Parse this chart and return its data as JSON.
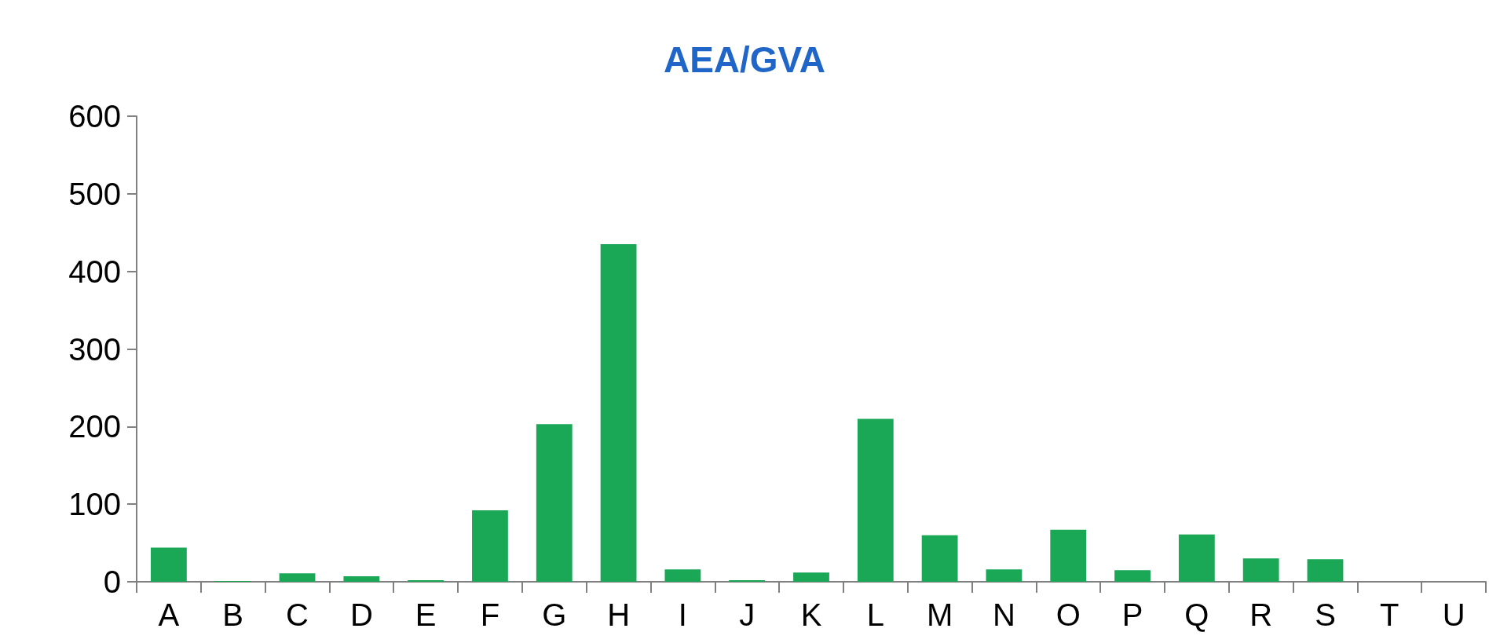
{
  "chart_data": {
    "type": "bar",
    "title": "AEA/GVA",
    "categories": [
      "A",
      "B",
      "C",
      "D",
      "E",
      "F",
      "G",
      "H",
      "I",
      "J",
      "K",
      "L",
      "M",
      "N",
      "O",
      "P",
      "Q",
      "R",
      "S",
      "T",
      "U"
    ],
    "values": [
      44,
      1,
      11,
      7,
      2,
      92,
      203,
      435,
      16,
      2,
      12,
      210,
      60,
      16,
      67,
      15,
      61,
      30,
      29,
      0,
      0
    ],
    "color": "#1aa857",
    "ylim": [
      0,
      600
    ],
    "yticks": [
      0,
      100,
      200,
      300,
      400,
      500,
      600
    ],
    "grid": false
  }
}
